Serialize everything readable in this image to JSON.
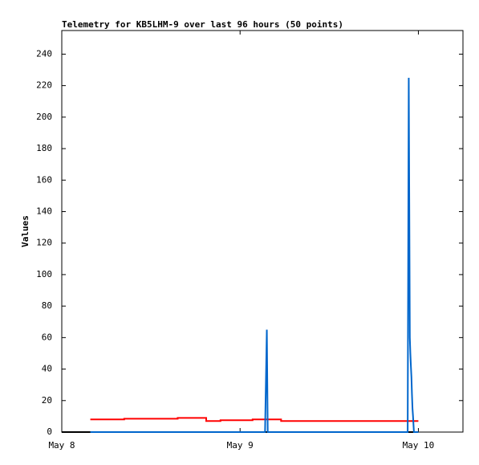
{
  "chart_data": {
    "type": "line",
    "title": "Telemetry for KB5LHM-9 over last 96 hours (50 points)",
    "y_label": "Values",
    "xlim": [
      8,
      10.25
    ],
    "xticks": [
      {
        "value": 8,
        "label": "May 8"
      },
      {
        "value": 9,
        "label": "May 9"
      },
      {
        "value": 10,
        "label": "May 10"
      }
    ],
    "ylim": [
      0,
      255
    ],
    "yticks": [
      0,
      20,
      40,
      60,
      80,
      100,
      120,
      140,
      160,
      180,
      200,
      220,
      240
    ],
    "series": [
      {
        "color": "#000000",
        "x": [
          8.0,
          10.0
        ],
        "values": [
          0,
          0
        ]
      },
      {
        "color": "#ff0000",
        "x": [
          8.16,
          8.35,
          8.35,
          8.65,
          8.65,
          8.81,
          8.81,
          8.89,
          8.89,
          9.07,
          9.07,
          9.23,
          9.23,
          10.0
        ],
        "values": [
          8,
          8,
          8.5,
          8.5,
          9,
          9,
          7,
          7,
          7.5,
          7.5,
          8,
          8,
          7,
          7
        ]
      },
      {
        "color": "#0066cc",
        "x": [
          8.16,
          9.14,
          9.145,
          9.15,
          9.155,
          9.94,
          9.943,
          9.946,
          9.949,
          9.952,
          9.955,
          9.958,
          9.961,
          9.964,
          9.967,
          9.97,
          9.975,
          10.0
        ],
        "values": [
          0,
          0,
          32,
          65,
          0,
          0,
          112,
          225,
          145,
          60,
          50,
          42,
          35,
          24,
          15,
          10,
          0,
          0
        ]
      }
    ]
  }
}
